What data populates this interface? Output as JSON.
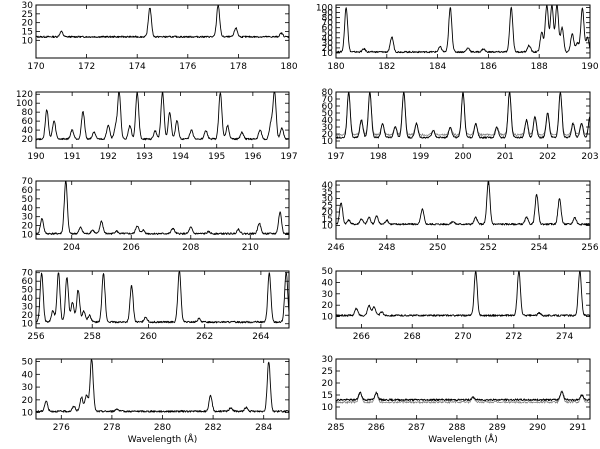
{
  "chart_data": [
    {
      "type": "line",
      "xlim": [
        170,
        180
      ],
      "ylim": [
        0,
        30
      ],
      "xticks": [
        170,
        172,
        174,
        176,
        178,
        180
      ],
      "yticks": [
        10,
        15,
        20,
        25,
        30
      ],
      "baseline": 12,
      "baseline2": null,
      "xlabel": "",
      "peaks": [
        [
          171.0,
          15
        ],
        [
          174.5,
          28.5
        ],
        [
          177.2,
          30
        ],
        [
          177.9,
          17
        ],
        [
          179.7,
          14
        ]
      ]
    },
    {
      "type": "line",
      "xlim": [
        180,
        190
      ],
      "ylim": [
        0,
        105
      ],
      "xticks": [
        180,
        182,
        184,
        186,
        188,
        190
      ],
      "yticks": [
        10,
        20,
        30,
        40,
        50,
        60,
        70,
        80,
        90,
        100
      ],
      "baseline": 12,
      "baseline2": null,
      "xlabel": "",
      "peaks": [
        [
          180.4,
          100
        ],
        [
          181.1,
          18
        ],
        [
          182.2,
          42
        ],
        [
          184.1,
          22
        ],
        [
          184.5,
          100
        ],
        [
          185.2,
          20
        ],
        [
          185.8,
          18
        ],
        [
          186.9,
          100
        ],
        [
          187.6,
          25
        ],
        [
          188.1,
          50
        ],
        [
          188.3,
          105
        ],
        [
          188.5,
          105
        ],
        [
          188.7,
          105
        ],
        [
          188.9,
          60
        ],
        [
          189.3,
          48
        ],
        [
          189.5,
          30
        ],
        [
          189.7,
          100
        ],
        [
          189.9,
          40
        ]
      ]
    },
    {
      "type": "line",
      "xlim": [
        190,
        197
      ],
      "ylim": [
        0,
        125
      ],
      "xticks": [
        190,
        191,
        192,
        193,
        194,
        195,
        196,
        197
      ],
      "yticks": [
        20,
        40,
        60,
        80,
        100,
        120
      ],
      "baseline": 20,
      "baseline2": null,
      "xlabel": "",
      "peaks": [
        [
          190.3,
          85
        ],
        [
          190.5,
          60
        ],
        [
          191.0,
          40
        ],
        [
          191.3,
          82
        ],
        [
          191.6,
          35
        ],
        [
          192.0,
          52
        ],
        [
          192.2,
          45
        ],
        [
          192.3,
          125
        ],
        [
          192.6,
          50
        ],
        [
          192.8,
          125
        ],
        [
          193.3,
          38
        ],
        [
          193.5,
          125
        ],
        [
          193.7,
          80
        ],
        [
          193.9,
          60
        ],
        [
          194.3,
          40
        ],
        [
          194.7,
          38
        ],
        [
          195.1,
          125
        ],
        [
          195.3,
          50
        ],
        [
          195.7,
          35
        ],
        [
          196.2,
          40
        ],
        [
          196.5,
          55
        ],
        [
          196.6,
          125
        ],
        [
          196.8,
          45
        ]
      ]
    },
    {
      "type": "line",
      "xlim": [
        197,
        203
      ],
      "ylim": [
        0,
        80
      ],
      "xticks": [
        197,
        198,
        199,
        200,
        201,
        202,
        203
      ],
      "yticks": [
        10,
        20,
        30,
        40,
        50,
        60,
        70,
        80
      ],
      "baseline": 15,
      "baseline2": 19,
      "xlabel": "",
      "peaks": [
        [
          197.3,
          80
        ],
        [
          197.6,
          40
        ],
        [
          197.8,
          80
        ],
        [
          198.1,
          35
        ],
        [
          198.4,
          30
        ],
        [
          198.6,
          80
        ],
        [
          198.9,
          35
        ],
        [
          199.3,
          25
        ],
        [
          199.7,
          30
        ],
        [
          200.0,
          80
        ],
        [
          200.3,
          35
        ],
        [
          200.8,
          30
        ],
        [
          201.1,
          80
        ],
        [
          201.5,
          40
        ],
        [
          201.7,
          45
        ],
        [
          202.0,
          50
        ],
        [
          202.3,
          80
        ],
        [
          202.6,
          35
        ],
        [
          202.8,
          35
        ],
        [
          203.0,
          45
        ]
      ]
    },
    {
      "type": "line",
      "xlim": [
        202.8,
        211.3
      ],
      "ylim": [
        5,
        70
      ],
      "xticks": [
        204,
        206,
        208,
        210
      ],
      "yticks": [
        10,
        20,
        30,
        40,
        50,
        60,
        70
      ],
      "baseline": 11,
      "baseline2": null,
      "xlabel": "",
      "peaks": [
        [
          203.0,
          28
        ],
        [
          203.8,
          70
        ],
        [
          204.3,
          18
        ],
        [
          204.7,
          15
        ],
        [
          205.0,
          25
        ],
        [
          205.5,
          14
        ],
        [
          206.2,
          20
        ],
        [
          206.4,
          15
        ],
        [
          207.4,
          17
        ],
        [
          208.0,
          18
        ],
        [
          208.6,
          13
        ],
        [
          209.6,
          16
        ],
        [
          210.3,
          23
        ],
        [
          211.0,
          35
        ]
      ]
    },
    {
      "type": "line",
      "xlim": [
        246,
        256
      ],
      "ylim": [
        0,
        43
      ],
      "xticks": [
        246,
        248,
        250,
        252,
        254,
        256
      ],
      "yticks": [
        10,
        15,
        20,
        25,
        30,
        35,
        40
      ],
      "baseline": 11,
      "baseline2": null,
      "xlabel": "",
      "peaks": [
        [
          246.2,
          27
        ],
        [
          246.5,
          14
        ],
        [
          247.0,
          15
        ],
        [
          247.3,
          16
        ],
        [
          247.6,
          17
        ],
        [
          248.0,
          14
        ],
        [
          249.4,
          22
        ],
        [
          250.6,
          13
        ],
        [
          251.5,
          16
        ],
        [
          252.0,
          43
        ],
        [
          253.5,
          16
        ],
        [
          253.9,
          33
        ],
        [
          254.8,
          30
        ],
        [
          255.4,
          16
        ]
      ]
    },
    {
      "type": "line",
      "xlim": [
        256,
        265
      ],
      "ylim": [
        5,
        72
      ],
      "xticks": [
        256,
        258,
        260,
        262,
        264
      ],
      "yticks": [
        10,
        20,
        30,
        40,
        50,
        60,
        70
      ],
      "baseline": 12,
      "baseline2": null,
      "xlabel": "",
      "peaks": [
        [
          256.2,
          70
        ],
        [
          256.6,
          25
        ],
        [
          256.8,
          70
        ],
        [
          257.1,
          65
        ],
        [
          257.3,
          35
        ],
        [
          257.5,
          50
        ],
        [
          257.7,
          25
        ],
        [
          257.9,
          20
        ],
        [
          258.4,
          70
        ],
        [
          259.4,
          55
        ],
        [
          259.9,
          18
        ],
        [
          261.1,
          72
        ],
        [
          261.8,
          16
        ],
        [
          264.3,
          70
        ],
        [
          264.9,
          70
        ]
      ]
    },
    {
      "type": "line",
      "xlim": [
        265,
        275
      ],
      "ylim": [
        0,
        50
      ],
      "xticks": [
        266,
        268,
        270,
        272,
        274
      ],
      "yticks": [
        10,
        20,
        30,
        40,
        50
      ],
      "baseline": 11,
      "baseline2": null,
      "xlabel": "",
      "peaks": [
        [
          265.8,
          17
        ],
        [
          266.3,
          20
        ],
        [
          266.5,
          19
        ],
        [
          266.8,
          14
        ],
        [
          270.5,
          50
        ],
        [
          272.2,
          50
        ],
        [
          273.0,
          13
        ],
        [
          274.6,
          50
        ]
      ]
    },
    {
      "type": "line",
      "xlim": [
        275,
        285
      ],
      "ylim": [
        5,
        52
      ],
      "xticks": [
        276,
        278,
        280,
        282,
        284
      ],
      "yticks": [
        10,
        20,
        30,
        40,
        50
      ],
      "baseline": 11,
      "baseline2": null,
      "xlabel": "Wavelength (Å)",
      "peaks": [
        [
          275.4,
          19
        ],
        [
          276.5,
          15
        ],
        [
          276.8,
          22
        ],
        [
          277.0,
          24
        ],
        [
          277.2,
          52
        ],
        [
          278.2,
          13
        ],
        [
          281.9,
          23
        ],
        [
          282.7,
          14
        ],
        [
          283.3,
          14
        ],
        [
          284.2,
          50
        ]
      ]
    },
    {
      "type": "line",
      "xlim": [
        285,
        291.3
      ],
      "ylim": [
        5,
        30
      ],
      "xticks": [
        285,
        286,
        287,
        288,
        289,
        290,
        291
      ],
      "yticks": [
        10,
        15,
        20,
        25,
        30
      ],
      "baseline": 13,
      "baseline2": 12,
      "xlabel": "Wavelength (Å)",
      "peaks": [
        [
          285.6,
          16
        ],
        [
          286.0,
          16
        ],
        [
          288.4,
          14
        ],
        [
          290.6,
          16.5
        ],
        [
          291.1,
          15
        ]
      ]
    }
  ]
}
